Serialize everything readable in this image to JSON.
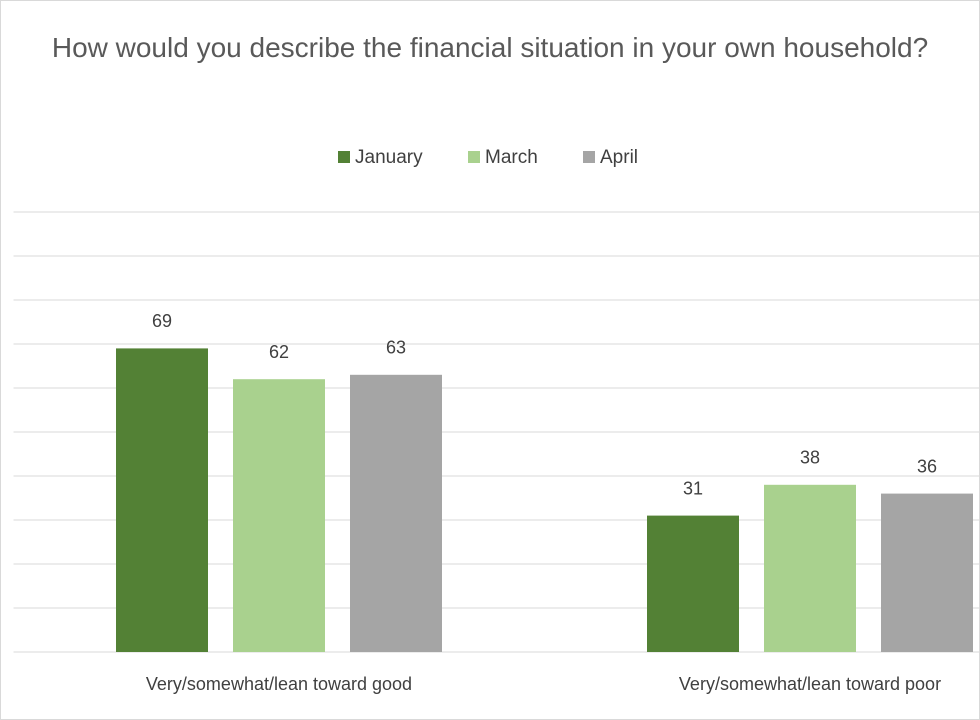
{
  "chart_data": {
    "type": "bar",
    "title": "How would you describe the financial situation in your own household?",
    "categories": [
      "Very/somewhat/lean toward good",
      "Very/somewhat/lean toward poor"
    ],
    "series": [
      {
        "name": "January",
        "color": "#538135",
        "values": [
          69,
          31
        ]
      },
      {
        "name": "March",
        "color": "#a9d18e",
        "values": [
          62,
          38
        ]
      },
      {
        "name": "April",
        "color": "#a5a5a5",
        "values": [
          63,
          36
        ]
      }
    ],
    "ylim": [
      0,
      100
    ],
    "yticks": [
      0,
      10,
      20,
      30,
      40,
      50,
      60,
      70,
      80,
      90,
      100
    ],
    "grid": true,
    "legend": "top"
  }
}
